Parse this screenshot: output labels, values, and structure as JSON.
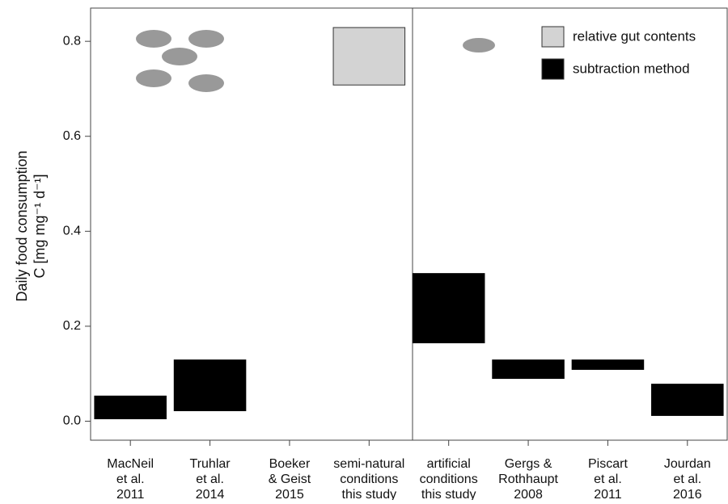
{
  "chart_data": {
    "type": "floating-bar",
    "y_label": "Daily food consumption",
    "y_label_2": "C [mg mg⁻¹ d⁻¹]",
    "categories": [
      "MacNeil\net al.\n2011",
      "Truhlar\net al.\n2014",
      "Boeker\n& Geist\n2015",
      "semi-natural\nconditions\nthis study",
      "artificial\nconditions\nthis study",
      "Gergs &\nRothhaupt\n2008",
      "Piscart\net al.\n2011",
      "Jourdan\net al.\n2016"
    ],
    "series": [
      {
        "name": "relative gut contents",
        "color": "#d3d3d3",
        "low": [
          null,
          null,
          null,
          0.708,
          null,
          null,
          null,
          null
        ],
        "high": [
          null,
          null,
          null,
          0.829,
          null,
          null,
          null,
          null
        ]
      },
      {
        "name": "subtraction method",
        "color": "#000000",
        "low": [
          0.005,
          0.022,
          0,
          null,
          0.165,
          0.09,
          0.109,
          0.012
        ],
        "high": [
          0.053,
          0.129,
          0,
          null,
          0.311,
          0.129,
          0.129,
          0.078
        ]
      }
    ],
    "ylim": [
      -0.04,
      0.87
    ],
    "yticks": [
      {
        "value": 0,
        "label": "0.0"
      },
      0.2,
      0.4,
      0.6,
      0.8
    ],
    "legend": "top-right"
  }
}
